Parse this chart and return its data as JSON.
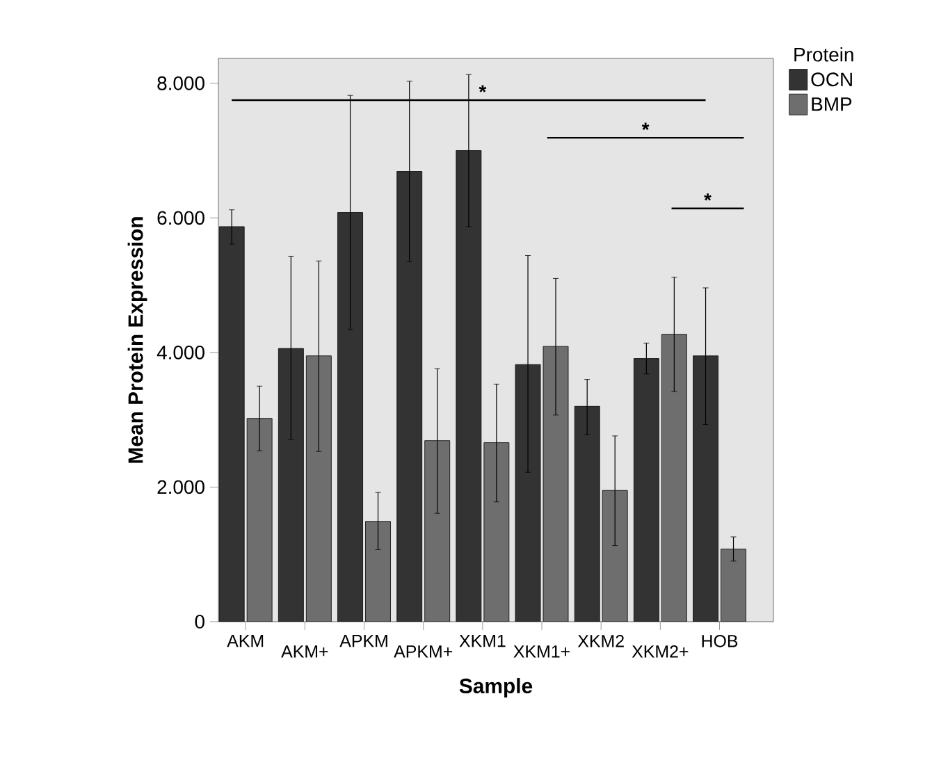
{
  "chart_data": {
    "type": "bar",
    "xlabel": "Sample",
    "ylabel": "Mean Protein Expression",
    "legend_title": "Protein",
    "categories": [
      "AKM",
      "AKM+",
      "APKM",
      "APKM+",
      "XKM1",
      "XKM1+",
      "XKM2",
      "XKM2+",
      "HOB"
    ],
    "series": [
      {
        "name": "OCN",
        "color": "#333333",
        "values": [
          5870,
          4060,
          6080,
          6690,
          7000,
          3820,
          3200,
          3910,
          3950
        ],
        "errors": [
          [
            5610,
            6120
          ],
          [
            2710,
            5430
          ],
          [
            4340,
            7820
          ],
          [
            5350,
            8030
          ],
          [
            5870,
            8130
          ],
          [
            2220,
            5440
          ],
          [
            2780,
            3600
          ],
          [
            3680,
            4140
          ],
          [
            2930,
            4960
          ]
        ]
      },
      {
        "name": "BMP",
        "color": "#6e6e6e",
        "values": [
          3020,
          3950,
          1490,
          2690,
          2660,
          4090,
          1950,
          4270,
          1080
        ],
        "errors": [
          [
            2540,
            3500
          ],
          [
            2530,
            5360
          ],
          [
            1070,
            1920
          ],
          [
            1610,
            3760
          ],
          [
            1780,
            3530
          ],
          [
            3070,
            5100
          ],
          [
            1130,
            2760
          ],
          [
            3420,
            5120
          ],
          [
            900,
            1260
          ]
        ]
      },
      {
        "type": "line",
        "color": "#000000",
        "x": [
          "AKM",
          "HOB"
        ],
        "values": [
          7750,
          7750
        ]
      }
    ],
    "ylim": [
      0,
      8370
    ],
    "yticks": [
      0,
      {
        "value": 2000,
        "label": "2.000"
      },
      {
        "value": 4000,
        "label": "4.000"
      },
      {
        "value": 6000,
        "label": "6.000"
      },
      {
        "value": 8000,
        "label": "8.000"
      }
    ],
    "annotations": [
      "*",
      "*",
      "*"
    ],
    "legend": "top right"
  }
}
